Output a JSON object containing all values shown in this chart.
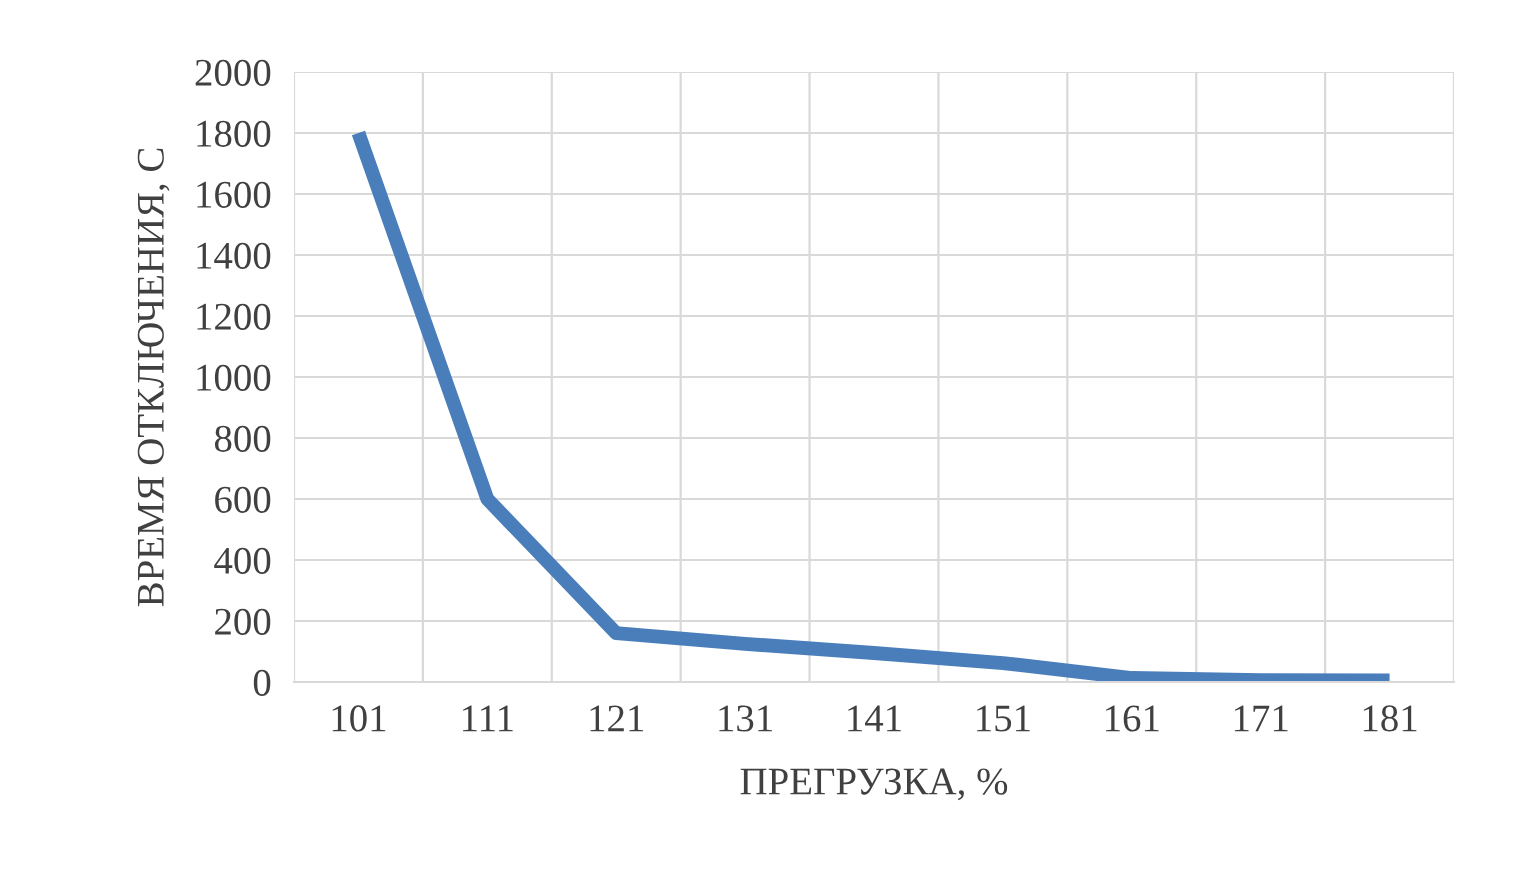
{
  "chart_data": {
    "type": "line",
    "xlabel": "ПРЕГРУЗКА, %",
    "ylabel": "ВРЕМЯ ОТКЛЮЧЕНИЯ, С",
    "categories": [
      "101",
      "111",
      "121",
      "131",
      "141",
      "151",
      "161",
      "171",
      "181"
    ],
    "series": [
      {
        "color": "#4a7ebb",
        "values": [
          1800,
          600,
          160,
          125,
          95,
          62,
          13,
          6,
          5
        ]
      }
    ],
    "ylim": [
      0,
      2000
    ],
    "yticks": [
      0,
      200,
      400,
      600,
      800,
      1000,
      1200,
      1400,
      1600,
      1800,
      2000
    ],
    "grid": true,
    "legend": false,
    "marker": "none",
    "line_style": "solid"
  }
}
